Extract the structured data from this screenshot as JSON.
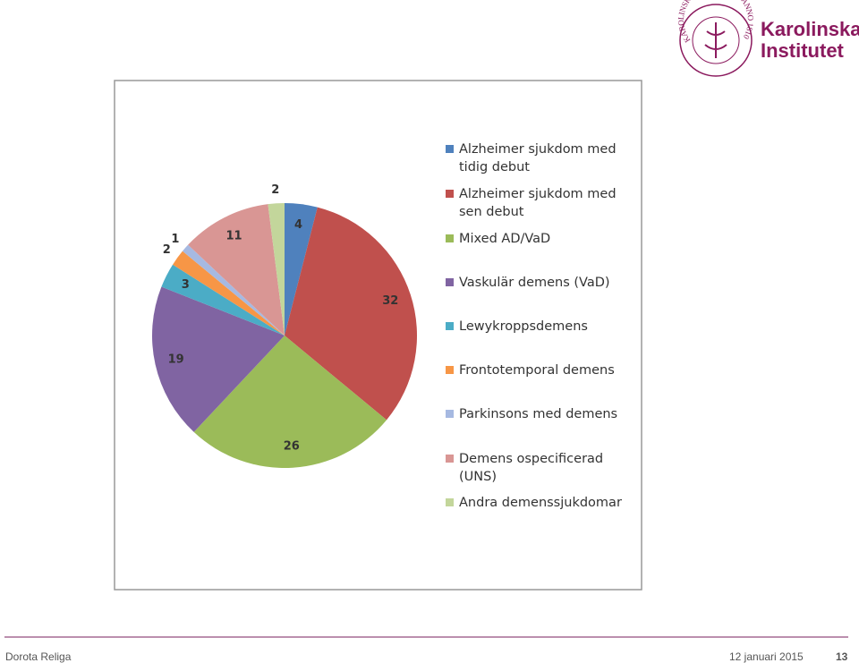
{
  "logo": {
    "name_line1": "Karolinska",
    "name_line2": "Institutet",
    "seal_text": "KAROLINSKA INSTITUTET · ANNO 1810"
  },
  "chart_data": {
    "type": "pie",
    "categories": [
      "Alzheimer sjukdom med tidig debut",
      "Alzheimer sjukdom med sen debut",
      "Mixed AD/VaD",
      "Vaskulär demens (VaD)",
      "Lewykroppsdemens",
      "Frontotemporal demens",
      "Parkinsons med demens",
      "Demens ospecificerad (UNS)",
      "Andra demenssjukdomar"
    ],
    "values": [
      4,
      32,
      26,
      19,
      3,
      2,
      1,
      11,
      2
    ],
    "colors": [
      "#4f81bd",
      "#c0504d",
      "#9bbb59",
      "#8064a2",
      "#4bacc6",
      "#f79646",
      "#a6b9e1",
      "#d99694",
      "#c3d69b"
    ],
    "legend": "right"
  },
  "footer": {
    "author": "Dorota Religa",
    "date": "12 januari 2015",
    "page": "13"
  }
}
